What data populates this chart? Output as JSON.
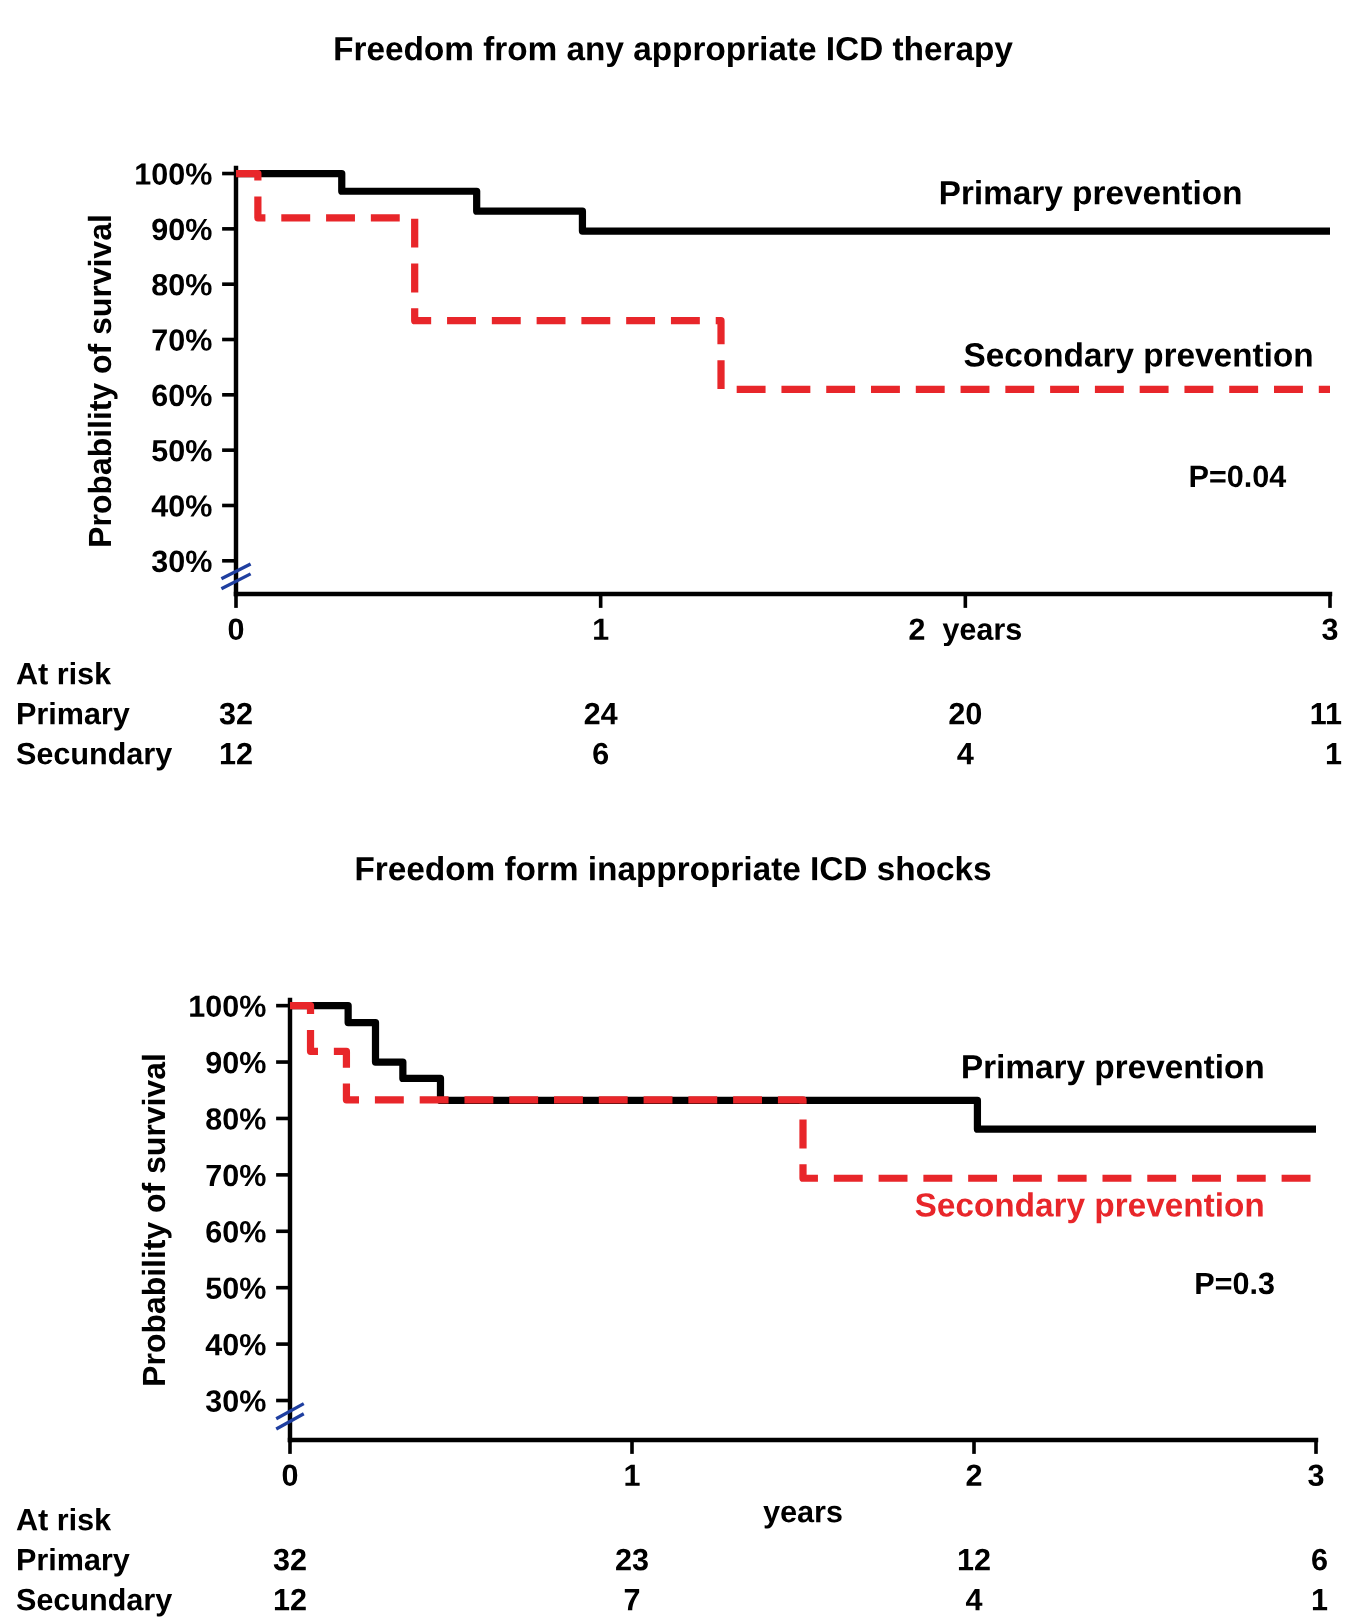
{
  "chart_data": [
    {
      "type": "step",
      "title": "Freedom from any appropriate ICD therapy",
      "ylabel": "Probability of survival",
      "xlim": [
        0,
        3
      ],
      "xticks": [
        0,
        1,
        {
          "value": 2,
          "label": "2  years"
        },
        3
      ],
      "ylim": [
        24,
        101
      ],
      "yticks": [
        {
          "value": 30,
          "label": "30%"
        },
        {
          "value": 40,
          "label": "40%"
        },
        {
          "value": 50,
          "label": "50%"
        },
        {
          "value": 60,
          "label": "60%"
        },
        {
          "value": 70,
          "label": "70%"
        },
        {
          "value": 80,
          "label": "80%"
        },
        {
          "value": 90,
          "label": "90%"
        },
        {
          "value": 100,
          "label": "100%"
        }
      ],
      "grid": false,
      "legend": false,
      "series": [
        {
          "name": "Primary prevention",
          "color": "#000000",
          "line_style": "solid",
          "x": [
            0,
            0.29,
            0.66,
            0.95,
            3
          ],
          "values": [
            100,
            96.8,
            93.2,
            89.6,
            89.6
          ]
        },
        {
          "name": "Secondary prevention",
          "color": "#e8262a",
          "line_style": "dashed",
          "x": [
            0,
            0.06,
            0.49,
            1.33,
            3
          ],
          "values": [
            100,
            92.0,
            73.4,
            61.0,
            61.0
          ]
        }
      ],
      "annotations": [
        "P=0.04",
        "At risk",
        "Primary",
        "32",
        "24",
        "20",
        "11",
        "Secundary",
        "12",
        "6",
        "4",
        "1"
      ]
    },
    {
      "type": "step",
      "title": "Freedom form inappropriate ICD shocks",
      "ylabel": "Probability of survival",
      "xlabel": "years",
      "xlim": [
        0,
        3
      ],
      "xticks": [
        0,
        1,
        2,
        3
      ],
      "ylim": [
        23,
        101
      ],
      "yticks": [
        {
          "value": 30,
          "label": "30%"
        },
        {
          "value": 40,
          "label": "40%"
        },
        {
          "value": 50,
          "label": "50%"
        },
        {
          "value": 60,
          "label": "60%"
        },
        {
          "value": 70,
          "label": "70%"
        },
        {
          "value": 80,
          "label": "80%"
        },
        {
          "value": 90,
          "label": "90%"
        },
        {
          "value": 100,
          "label": "100%"
        }
      ],
      "grid": false,
      "legend": false,
      "series": [
        {
          "name": "Primary prevention",
          "color": "#000000",
          "line_style": "solid",
          "x": [
            0,
            0.17,
            0.25,
            0.33,
            0.44,
            2.01,
            3
          ],
          "values": [
            100,
            97.0,
            90.0,
            87.1,
            83.2,
            78.1,
            78.1
          ]
        },
        {
          "name": "Secondary prevention",
          "color": "#e8262a",
          "line_style": "dashed",
          "x": [
            0,
            0.06,
            0.165,
            1.5,
            3
          ],
          "values": [
            100,
            91.9,
            83.3,
            69.4,
            69.4
          ]
        }
      ],
      "annotations": [
        "P=0.3",
        "At risk",
        "Primary",
        "32",
        "23",
        "12",
        "6",
        "Secundary",
        "12",
        "7",
        "4",
        "1"
      ]
    }
  ]
}
